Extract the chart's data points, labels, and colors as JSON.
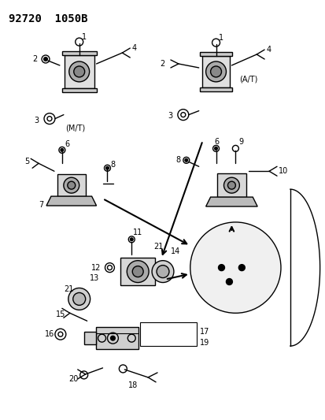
{
  "title": "92720  1050B",
  "bg_color": "#ffffff",
  "fg_color": "#000000",
  "fig_width": 4.14,
  "fig_height": 5.33,
  "dpi": 100,
  "label_MT": "(M/T)",
  "label_AT": "(A/T)"
}
